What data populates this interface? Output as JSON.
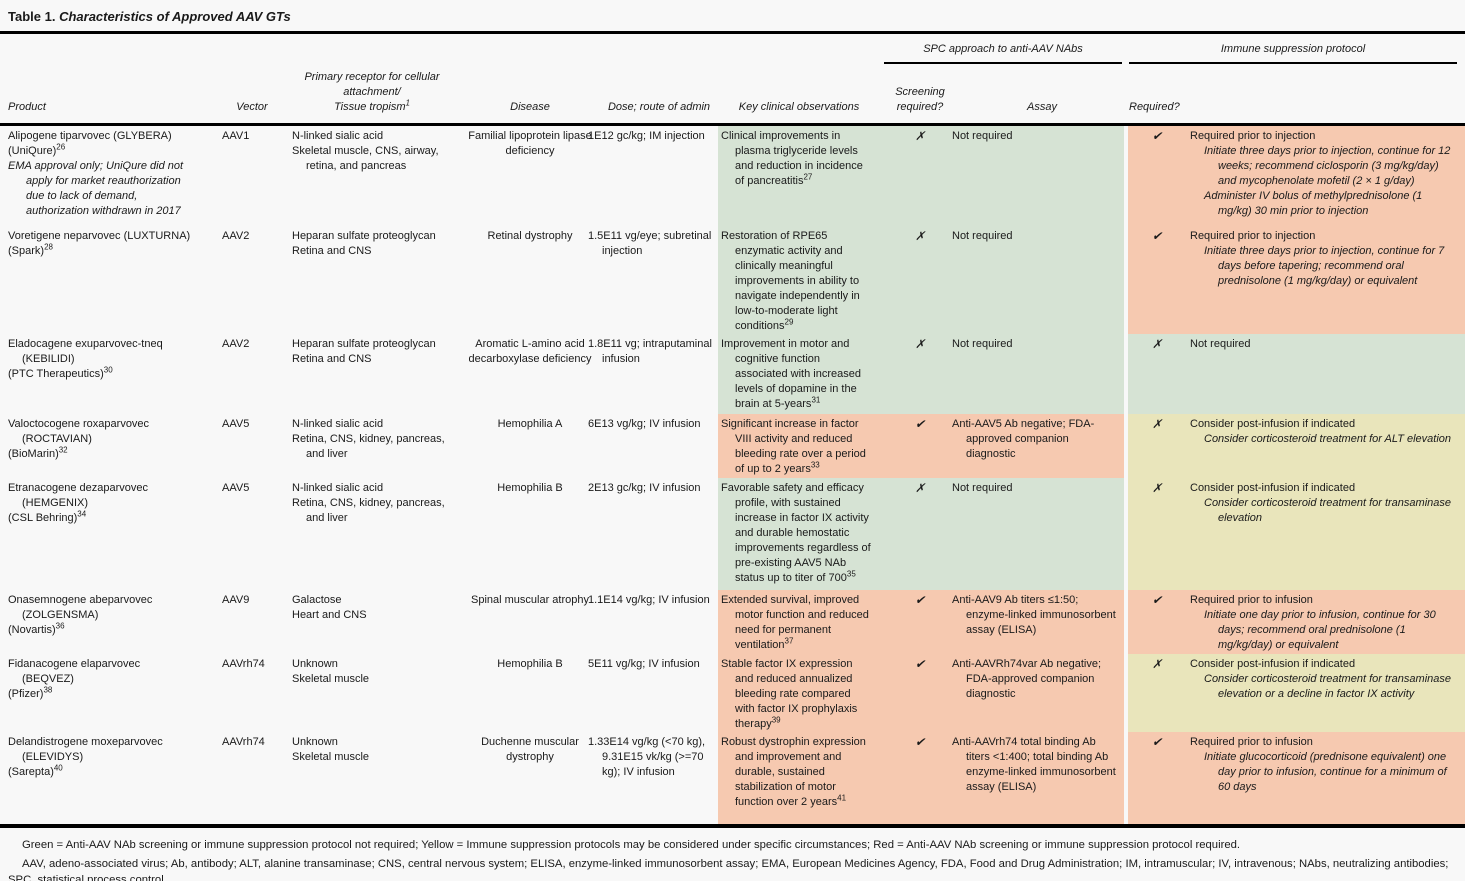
{
  "title": {
    "label": "Table 1.",
    "caption": "Characteristics of Approved AAV GTs"
  },
  "colors": {
    "green": "#d6e3d4",
    "red": "#f6c9b0",
    "yellow": "#e9e5bb",
    "page_bg": "#f8f8f8",
    "rule": "#000000"
  },
  "header": {
    "groups": {
      "spc": "SPC approach to anti-AAV NAbs",
      "immune": "Immune suppression protocol"
    },
    "columns": {
      "product": "Product",
      "vector": "Vector",
      "receptor_l1": "Primary receptor for cellular",
      "receptor_l2": "attachment/",
      "receptor_l3": "Tissue tropism",
      "receptor_ref": "1",
      "disease": "Disease",
      "dose": "Dose; route of admin",
      "key_obs": "Key clinical observations",
      "screening": "Screening required?",
      "assay": "Assay",
      "required": "Required?"
    }
  },
  "rows": [
    {
      "product_line1": "Alipogene tiparvovec (GLYBERA)",
      "product_line2": "(UniQure)",
      "product_ref": "26",
      "product_note": "EMA approval only; UniQure did not apply for market reauthorization due to lack of demand, authorization withdrawn in 2017",
      "vector": "AAV1",
      "receptor": "N-linked sialic acid",
      "tropism": "Skeletal muscle, CNS, airway, retina, and pancreas",
      "disease": "Familial lipoprotein lipase deficiency",
      "dose": "1E12 gc/kg; IM injection",
      "key_obs": "Clinical improvements in plasma triglyceride levels and reduction in incidence of pancreatitis",
      "key_obs_ref": "27",
      "spc_color": "green",
      "screening_mark": "✗",
      "assay": "Not required",
      "is_color": "red",
      "required_mark": "✔",
      "protocol_main": "Required prior to injection",
      "protocol_italic1": "Initiate three days prior to injection, continue for 12 weeks; recommend ciclosporin (3 mg/kg/day) and mycophenolate mofetil (2 × 1 g/day)",
      "protocol_italic2": "Administer IV bolus of methylprednisolone (1 mg/kg) 30 min prior to injection"
    },
    {
      "product_line1": "Voretigene neparvovec (LUXTURNA)",
      "product_line2": "(Spark)",
      "product_ref": "28",
      "product_note": "",
      "vector": "AAV2",
      "receptor": "Heparan sulfate proteoglycan",
      "tropism": "Retina and CNS",
      "disease": "Retinal dystrophy",
      "dose": "1.5E11 vg/eye; subretinal injection",
      "key_obs": "Restoration of RPE65 enzymatic activity and clinically meaningful improvements in ability to navigate independently in low-to-moderate light conditions",
      "key_obs_ref": "29",
      "spc_color": "green",
      "screening_mark": "✗",
      "assay": "Not required",
      "is_color": "red",
      "required_mark": "✔",
      "protocol_main": "Required prior to injection",
      "protocol_italic1": "Initiate three days prior to injection, continue for 7 days before tapering; recommend oral prednisolone (1 mg/kg/day) or equivalent",
      "protocol_italic2": ""
    },
    {
      "product_line1": "Eladocagene exuparvovec-tneq (KEBILIDI)",
      "product_line2": "(PTC Therapeutics)",
      "product_ref": "30",
      "product_note": "",
      "vector": "AAV2",
      "receptor": "Heparan sulfate proteoglycan",
      "tropism": "Retina and CNS",
      "disease": "Aromatic L-amino acid decarboxylase deficiency",
      "dose": "1.8E11 vg; intraputaminal infusion",
      "key_obs": "Improvement in motor and cognitive function associated with increased levels of dopamine in the brain at 5-years",
      "key_obs_ref": "31",
      "spc_color": "green",
      "screening_mark": "✗",
      "assay": "Not required",
      "is_color": "green",
      "required_mark": "✗",
      "protocol_main": "Not required",
      "protocol_italic1": "",
      "protocol_italic2": ""
    },
    {
      "product_line1": "Valoctocogene roxaparvovec (ROCTAVIAN)",
      "product_line2": "(BioMarin)",
      "product_ref": "32",
      "product_note": "",
      "vector": "AAV5",
      "receptor": "N-linked sialic acid",
      "tropism": "Retina, CNS, kidney, pancreas, and liver",
      "disease": "Hemophilia A",
      "dose": "6E13 vg/kg; IV infusion",
      "key_obs": "Significant increase in factor VIII activity and reduced bleeding rate over a period of up to 2 years",
      "key_obs_ref": "33",
      "spc_color": "red",
      "screening_mark": "✔",
      "assay": "Anti-AAV5 Ab negative; FDA-approved companion diagnostic",
      "is_color": "yellow",
      "required_mark": "✗",
      "protocol_main": "Consider post-infusion if indicated",
      "protocol_italic1": "Consider corticosteroid treatment for ALT elevation",
      "protocol_italic2": ""
    },
    {
      "product_line1": "Etranacogene dezaparvovec (HEMGENIX)",
      "product_line2": "(CSL Behring)",
      "product_ref": "34",
      "product_note": "",
      "vector": "AAV5",
      "receptor": "N-linked sialic acid",
      "tropism": "Retina, CNS, kidney, pancreas, and liver",
      "disease": "Hemophilia B",
      "dose": "2E13 gc/kg; IV infusion",
      "key_obs": "Favorable safety and efficacy profile, with sustained increase in factor IX activity and durable hemostatic improvements regardless of pre-existing AAV5 NAb status up to titer of 700",
      "key_obs_ref": "35",
      "spc_color": "green",
      "screening_mark": "✗",
      "assay": "Not required",
      "is_color": "yellow",
      "required_mark": "✗",
      "protocol_main": "Consider post-infusion if indicated",
      "protocol_italic1": "Consider corticosteroid treatment for transaminase elevation",
      "protocol_italic2": ""
    },
    {
      "product_line1": "Onasemnogene abeparvovec (ZOLGENSMA)",
      "product_line2": "(Novartis)",
      "product_ref": "36",
      "product_note": "",
      "vector": "AAV9",
      "receptor": "Galactose",
      "tropism": "Heart and CNS",
      "disease": "Spinal muscular atrophy",
      "dose": "1.1E14 vg/kg; IV infusion",
      "key_obs": "Extended survival, improved motor function and reduced need for permanent ventilation",
      "key_obs_ref": "37",
      "spc_color": "red",
      "screening_mark": "✔",
      "assay": "Anti-AAV9 Ab titers ≤1:50; enzyme-linked immunosorbent assay (ELISA)",
      "is_color": "red",
      "required_mark": "✔",
      "protocol_main": "Required prior to infusion",
      "protocol_italic1": "Initiate one day prior to infusion, continue for 30 days; recommend oral prednisolone (1 mg/kg/day) or equivalent",
      "protocol_italic2": ""
    },
    {
      "product_line1": "Fidanacogene elaparvovec (BEQVEZ)",
      "product_line2": "(Pfizer)",
      "product_ref": "38",
      "product_note": "",
      "vector": "AAVrh74",
      "receptor": "Unknown",
      "tropism": "Skeletal muscle",
      "disease": "Hemophilia B",
      "dose": "5E11 vg/kg; IV infusion",
      "key_obs": "Stable factor IX expression and reduced annualized bleeding rate compared with factor IX prophylaxis therapy",
      "key_obs_ref": "39",
      "spc_color": "red",
      "screening_mark": "✔",
      "assay": "Anti-AAVRh74var Ab negative; FDA-approved companion diagnostic",
      "is_color": "yellow",
      "required_mark": "✗",
      "protocol_main": "Consider post-infusion if indicated",
      "protocol_italic1": "Consider corticosteroid treatment for transaminase elevation or a decline in factor IX activity",
      "protocol_italic2": ""
    },
    {
      "product_line1": "Delandistrogene moxeparvovec (ELEVIDYS)",
      "product_line2": "(Sarepta)",
      "product_ref": "40",
      "product_note": "",
      "vector": "AAVrh74",
      "receptor": "Unknown",
      "tropism": "Skeletal muscle",
      "disease": "Duchenne muscular dystrophy",
      "dose": "1.33E14 vg/kg (<70 kg), 9.31E15 vk/kg (>=70 kg); IV infusion",
      "key_obs": "Robust dystrophin expression and improvement and durable, sustained stabilization of motor function over 2 years",
      "key_obs_ref": "41",
      "spc_color": "red",
      "screening_mark": "✔",
      "assay": "Anti-AAVrh74 total binding Ab titers <1:400; total binding Ab enzyme-linked immunosorbent assay (ELISA)",
      "is_color": "red",
      "required_mark": "✔",
      "protocol_main": "Required prior to infusion",
      "protocol_italic1": "Initiate glucocorticoid (prednisone equivalent) one day prior to infusion, continue for a minimum of 60 days",
      "protocol_italic2": ""
    }
  ],
  "footer": {
    "legend": "Green = Anti-AAV NAb screening or immune suppression protocol not required; Yellow = Immune suppression protocols may be considered under specific circumstances; Red = Anti-AAV NAb screening or immune suppression protocol required.",
    "abbreviations": "AAV, adeno-associated virus; Ab, antibody; ALT, alanine transaminase; CNS, central nervous system; ELISA, enzyme-linked immunosorbent assay; EMA, European Medicines Agency, FDA, Food and Drug Administration; IM, intramuscular; IV, intravenous; NAbs, neutralizing antibodies; SPC, statistical process control."
  }
}
